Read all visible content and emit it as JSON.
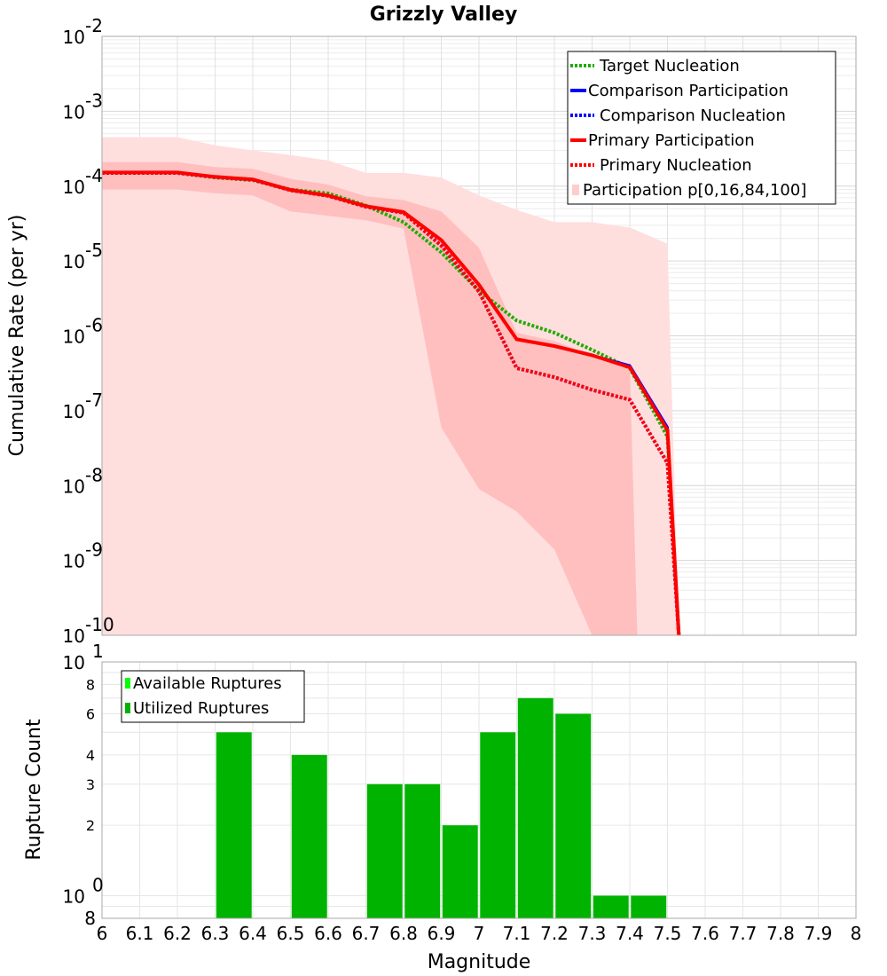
{
  "chart_data": [
    {
      "type": "line",
      "title": "Grizzly Valley",
      "xlabel": "",
      "ylabel": "Cumulative Rate (per yr)",
      "yscale": "log",
      "xlim": [
        6,
        8
      ],
      "ylim": [
        1e-10,
        0.01
      ],
      "y_ticks": [
        {
          "base": "10",
          "exp": "-2"
        },
        {
          "base": "10",
          "exp": "-3"
        },
        {
          "base": "10",
          "exp": "-4"
        },
        {
          "base": "10",
          "exp": "-5"
        },
        {
          "base": "10",
          "exp": "-6"
        },
        {
          "base": "10",
          "exp": "-7"
        },
        {
          "base": "10",
          "exp": "-8"
        },
        {
          "base": "10",
          "exp": "-9"
        },
        {
          "base": "10",
          "exp": "-10"
        }
      ],
      "legend": [
        {
          "label": "Target Nucleation",
          "color": "#22aa00",
          "style": "dotted"
        },
        {
          "label": "Comparison Participation",
          "color": "#0000ff",
          "style": "solid"
        },
        {
          "label": "Comparison Nucleation",
          "color": "#0000ff",
          "style": "dotted"
        },
        {
          "label": "Primary Participation",
          "color": "#ff0000",
          "style": "solid"
        },
        {
          "label": "Primary Nucleation",
          "color": "#ff0000",
          "style": "dotted"
        },
        {
          "label": "Participation p[0,16,84,100]",
          "color": "#ffcccc",
          "style": "band"
        }
      ],
      "series": [
        {
          "name": "Target Nucleation",
          "color": "#22aa00",
          "style": "dotted",
          "x": [
            6.0,
            6.2,
            6.3,
            6.4,
            6.5,
            6.6,
            6.7,
            6.8,
            6.9,
            7.0,
            7.1,
            7.2,
            7.3,
            7.4,
            7.5,
            7.53
          ],
          "y": [
            0.00015,
            0.00015,
            0.00013,
            0.00012,
            9e-05,
            8e-05,
            5.5e-05,
            3.3e-05,
            1.3e-05,
            4e-06,
            1.6e-06,
            1.1e-06,
            6.5e-07,
            3.7e-07,
            4.5e-08,
            1e-10
          ]
        },
        {
          "name": "Comparison Participation",
          "color": "#0000ff",
          "style": "solid",
          "x": [
            6.0,
            6.2,
            6.3,
            6.4,
            6.5,
            6.6,
            6.7,
            6.8,
            6.9,
            7.0,
            7.1,
            7.2,
            7.3,
            7.4,
            7.5,
            7.53
          ],
          "y": [
            0.000152,
            0.000152,
            0.000133,
            0.000123,
            8.9e-05,
            7.5e-05,
            5.4e-05,
            4.5e-05,
            1.9e-05,
            4.8e-06,
            9e-07,
            7.3e-07,
            5.5e-07,
            4e-07,
            6e-08,
            1e-10
          ]
        },
        {
          "name": "Comparison Nucleation",
          "color": "#0000ff",
          "style": "dotted",
          "x": [
            6.0,
            6.2,
            6.3,
            6.4,
            6.5,
            6.6,
            6.7,
            6.8,
            6.9,
            7.0,
            7.1,
            7.2,
            7.3,
            7.4,
            7.5,
            7.53
          ],
          "y": [
            0.00015,
            0.00015,
            0.000132,
            0.000122,
            8.8e-05,
            7.4e-05,
            5.3e-05,
            4.4e-05,
            1.6e-05,
            3.9e-06,
            3.7e-07,
            2.8e-07,
            1.9e-07,
            1.4e-07,
            2e-08,
            1e-10
          ]
        },
        {
          "name": "Primary Participation",
          "color": "#ff0000",
          "style": "solid",
          "x": [
            6.0,
            6.2,
            6.3,
            6.4,
            6.5,
            6.6,
            6.7,
            6.8,
            6.9,
            7.0,
            7.1,
            7.2,
            7.3,
            7.4,
            7.5,
            7.53
          ],
          "y": [
            0.000152,
            0.000152,
            0.000133,
            0.000123,
            8.9e-05,
            7.5e-05,
            5.4e-05,
            4.5e-05,
            1.9e-05,
            4.8e-06,
            9e-07,
            7.3e-07,
            5.5e-07,
            3.8e-07,
            5.5e-08,
            1e-10
          ]
        },
        {
          "name": "Primary Nucleation",
          "color": "#ff0000",
          "style": "dotted",
          "x": [
            6.0,
            6.2,
            6.3,
            6.4,
            6.5,
            6.6,
            6.7,
            6.8,
            6.9,
            7.0,
            7.1,
            7.2,
            7.3,
            7.4,
            7.5,
            7.53
          ],
          "y": [
            0.00015,
            0.00015,
            0.000132,
            0.000122,
            8.8e-05,
            7.4e-05,
            5.3e-05,
            4.4e-05,
            1.6e-05,
            3.9e-06,
            3.7e-07,
            2.8e-07,
            1.9e-07,
            1.4e-07,
            2e-08,
            1e-10
          ]
        }
      ],
      "bands": {
        "outer": {
          "name": "Participation p[0,100]",
          "x": [
            6.0,
            6.2,
            6.3,
            6.4,
            6.5,
            6.6,
            6.7,
            6.8,
            6.9,
            7.0,
            7.1,
            7.2,
            7.3,
            7.4,
            7.5,
            7.53
          ],
          "upper": [
            0.00045,
            0.00045,
            0.00035,
            0.0003,
            0.00026,
            0.00022,
            0.00015,
            0.00015,
            0.00013,
            7.5e-05,
            4.8e-05,
            3.3e-05,
            3.3e-05,
            2.8e-05,
            1.7e-05,
            1e-10
          ],
          "lower": [
            1e-10,
            1e-10,
            1e-10,
            1e-10,
            1e-10,
            1e-10,
            1e-10,
            1e-10,
            1e-10,
            1e-10,
            1e-10,
            1e-10,
            1e-10,
            1e-10,
            1e-10,
            1e-10
          ]
        },
        "inner": {
          "name": "Participation p[16,84]",
          "x": [
            6.0,
            6.2,
            6.3,
            6.4,
            6.5,
            6.6,
            6.7,
            6.8,
            6.9,
            7.0,
            7.1,
            7.2,
            7.3,
            7.35,
            7.4,
            7.42
          ],
          "upper": [
            0.00021,
            0.00021,
            0.00018,
            0.00017,
            0.000125,
            0.000105,
            7.3e-05,
            6.5e-05,
            4.6e-05,
            1.5e-05,
            1.1e-06,
            8.5e-07,
            5.5e-07,
            4.7e-07,
            4e-07,
            1e-10
          ],
          "lower": [
            9e-05,
            9e-05,
            8e-05,
            7.5e-05,
            4.6e-05,
            4e-05,
            3.5e-05,
            2.7e-05,
            6e-08,
            9e-09,
            4.5e-09,
            1.4e-09,
            1e-10,
            1e-10,
            1e-10,
            1e-10
          ]
        }
      }
    },
    {
      "type": "bar",
      "title": "",
      "xlabel": "Magnitude",
      "ylabel": "Rupture Count",
      "yscale": "log",
      "xlim": [
        6,
        8
      ],
      "ylim": [
        0.8,
        10
      ],
      "x_ticks": [
        "6",
        "6.1",
        "6.2",
        "6.3",
        "6.4",
        "6.5",
        "6.6",
        "6.7",
        "6.8",
        "6.9",
        "7",
        "7.1",
        "7.2",
        "7.3",
        "7.4",
        "7.5",
        "7.6",
        "7.7",
        "7.8",
        "7.9",
        "8"
      ],
      "y_ticks": [
        "2",
        "3",
        "4",
        "6",
        "8"
      ],
      "y_major_ticks": [
        {
          "base": "10",
          "exp": "1"
        },
        {
          "base": "10",
          "exp": "0"
        }
      ],
      "y_bottom_label": "8",
      "legend": [
        {
          "label": "Available Ruptures",
          "color": "#00ff00"
        },
        {
          "label": "Utilized Ruptures",
          "color": "#00b300"
        }
      ],
      "series": [
        {
          "name": "Utilized Ruptures",
          "color": "#00b300",
          "x": [
            6.35,
            6.55,
            6.75,
            6.85,
            6.95,
            7.05,
            7.15,
            7.25,
            7.35,
            7.45
          ],
          "values": [
            5,
            4,
            3,
            3,
            2,
            5,
            7,
            6,
            1,
            1
          ]
        }
      ]
    }
  ]
}
